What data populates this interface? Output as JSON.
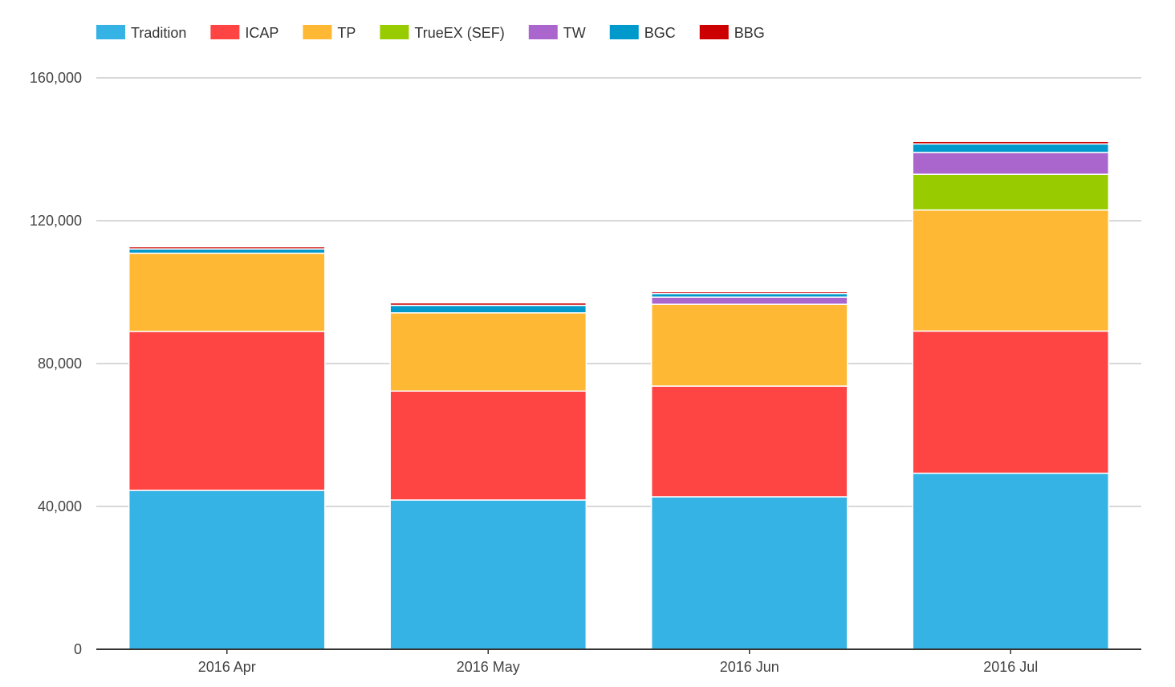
{
  "chart_data": {
    "type": "bar",
    "stacked": true,
    "categories": [
      "2016 Apr",
      "2016 May",
      "2016 Jun",
      "2016 Jul"
    ],
    "series": [
      {
        "name": "Tradition",
        "color": "#34b3e4",
        "values": [
          44500,
          41800,
          42700,
          49300
        ]
      },
      {
        "name": "ICAP",
        "color": "#ff4444",
        "values": [
          44500,
          30500,
          31000,
          39800
        ]
      },
      {
        "name": "TP",
        "color": "#ffb833",
        "values": [
          21900,
          21900,
          22900,
          33900
        ]
      },
      {
        "name": "TrueEX (SEF)",
        "color": "#99cc00",
        "values": [
          0,
          0,
          0,
          10000
        ]
      },
      {
        "name": "TW",
        "color": "#aa66cc",
        "values": [
          0,
          0,
          2000,
          6100
        ]
      },
      {
        "name": "BGC",
        "color": "#0099cc",
        "values": [
          1200,
          2100,
          1000,
          2400
        ]
      },
      {
        "name": "BBG",
        "color": "#cc0000",
        "values": [
          600,
          700,
          500,
          700
        ]
      }
    ],
    "yticks": [
      0,
      40000,
      80000,
      120000,
      160000
    ],
    "ytick_labels": [
      "0",
      "40,000",
      "80,000",
      "120,000",
      "160,000"
    ],
    "ylim": [
      0,
      160000
    ],
    "grid": true,
    "legend": "top-left"
  }
}
